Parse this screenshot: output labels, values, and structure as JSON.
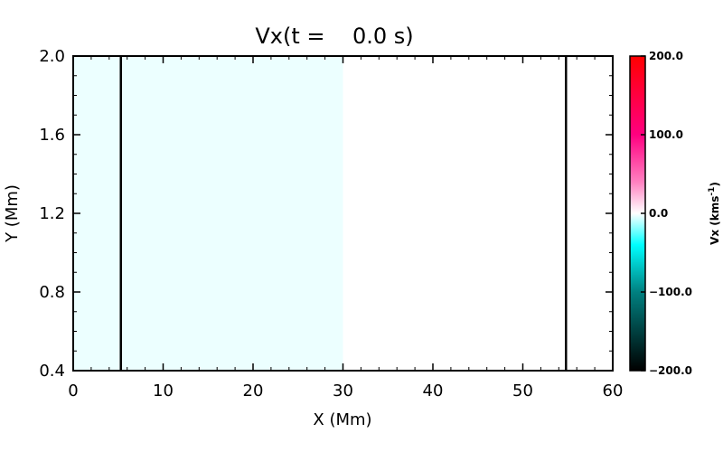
{
  "chart_data": {
    "type": "heatmap",
    "title": "Vx(t =    0.0 s)",
    "xlabel": "X (Mm)",
    "ylabel": "Y (Mm)",
    "xlim": [
      0,
      60
    ],
    "ylim": [
      0.4,
      2.0
    ],
    "x_ticks": [
      0,
      10,
      20,
      30,
      40,
      50,
      60
    ],
    "x_tick_labels": [
      "0",
      "10",
      "20",
      "30",
      "40",
      "50",
      "60"
    ],
    "y_ticks": [
      0.4,
      0.8,
      1.2,
      1.6,
      2.0
    ],
    "y_tick_labels": [
      "0.4",
      "0.8",
      "1.2",
      "1.6",
      "2.0"
    ],
    "regions": [
      {
        "x_range": [
          0,
          30
        ],
        "value": -3
      },
      {
        "x_range": [
          30,
          60
        ],
        "value": 0
      }
    ],
    "vertical_lines": [
      5.3,
      54.8
    ],
    "colorbar": {
      "label": "Vx (kms",
      "label_superscript": "-1",
      "label_close": ")",
      "range": [
        -200,
        200
      ],
      "ticks": [
        200,
        100,
        0,
        -100,
        -200
      ],
      "tick_labels": [
        "200.0",
        "100.0",
        "0.0",
        "−100.0",
        "−200.0"
      ],
      "color_stops": [
        {
          "value": -200,
          "color": "#000000"
        },
        {
          "value": -100,
          "color": "#008080"
        },
        {
          "value": -40,
          "color": "#00ffff"
        },
        {
          "value": 0,
          "color": "#ffffff"
        },
        {
          "value": 40,
          "color": "#ff80c0"
        },
        {
          "value": 100,
          "color": "#ff0080"
        },
        {
          "value": 200,
          "color": "#ff0000"
        }
      ]
    }
  }
}
